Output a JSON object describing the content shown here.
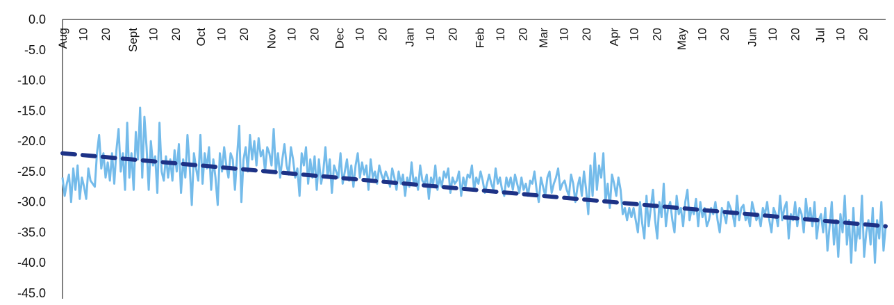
{
  "chart_data": {
    "type": "line",
    "title": "",
    "xlabel": "",
    "ylabel": "",
    "ylim": [
      -45.0,
      0.0
    ],
    "yticks": [
      "0.0",
      "-5.0",
      "-10.0",
      "-15.0",
      "-20.0",
      "-25.0",
      "-30.0",
      "-35.0",
      "-40.0",
      "-45.0"
    ],
    "xtick_labels": [
      "Aug",
      "10",
      "20",
      "Sept",
      "10",
      "20",
      "Oct",
      "10",
      "20",
      "Nov",
      "10",
      "20",
      "Dec",
      "10",
      "20",
      "Jan",
      "10",
      "20",
      "Feb",
      "10",
      "20",
      "Mar",
      "10",
      "20",
      "Apr",
      "10",
      "20",
      "May",
      "10",
      "20",
      "Jun",
      "10",
      "20",
      "Jul",
      "10",
      "20"
    ],
    "xtick_days": [
      0,
      9,
      19,
      31,
      40,
      50,
      61,
      70,
      80,
      92,
      101,
      111,
      122,
      131,
      141,
      153,
      162,
      172,
      184,
      193,
      203,
      212,
      221,
      231,
      243,
      252,
      262,
      273,
      282,
      292,
      304,
      313,
      323,
      334,
      343,
      353
    ],
    "x_range_days": [
      0,
      363
    ],
    "grid": false,
    "legend": "none",
    "series": [
      {
        "style": "solid",
        "color": "#74BBEA",
        "values": [
          -26,
          -29,
          -27,
          -25.5,
          -30,
          -24.5,
          -28,
          -24,
          -29.5,
          -26,
          -27.5,
          -29.5,
          -24.5,
          -26.5,
          -27,
          -27.5,
          -22,
          -19,
          -24.5,
          -22,
          -26,
          -23.5,
          -26.5,
          -22,
          -27,
          -21.5,
          -18,
          -25,
          -22,
          -28,
          -17,
          -26,
          -22,
          -28,
          -18.5,
          -23,
          -14.5,
          -26,
          -16,
          -21,
          -28,
          -20,
          -24,
          -22.5,
          -28.5,
          -17,
          -25,
          -26.5,
          -22.5,
          -26,
          -23,
          -26.5,
          -21.5,
          -25,
          -20.5,
          -28.5,
          -23,
          -26,
          -19,
          -24,
          -30.5,
          -22,
          -24.5,
          -26.5,
          -19,
          -27,
          -22,
          -24.5,
          -21,
          -28,
          -23,
          -26,
          -30.5,
          -22,
          -25,
          -21,
          -24,
          -26,
          -22,
          -23,
          -28,
          -22.5,
          -17.5,
          -30,
          -23,
          -21,
          -25,
          -19,
          -23,
          -20,
          -24,
          -19.5,
          -22.5,
          -21.5,
          -25,
          -21,
          -22,
          -24,
          -18,
          -25,
          -22,
          -26,
          -23,
          -20.5,
          -24,
          -25.5,
          -21,
          -23,
          -26,
          -24.5,
          -29,
          -22,
          -24,
          -21,
          -27,
          -23,
          -26,
          -22.5,
          -28,
          -23,
          -27,
          -25,
          -21,
          -26,
          -23,
          -28.5,
          -24,
          -25,
          -26,
          -22,
          -27,
          -25,
          -23,
          -26.5,
          -24,
          -27.5,
          -24,
          -22,
          -26,
          -23.5,
          -25.5,
          -24,
          -28,
          -23,
          -26,
          -25,
          -27,
          -24,
          -25.5,
          -26.5,
          -25,
          -26,
          -27.5,
          -24.5,
          -26,
          -28,
          -25,
          -27,
          -25.5,
          -29,
          -26,
          -27.5,
          -23.5,
          -27,
          -26,
          -28,
          -24,
          -26.5,
          -27,
          -25.5,
          -29.5,
          -26,
          -27,
          -24,
          -28,
          -26,
          -27.5,
          -25,
          -26,
          -24.5,
          -28.5,
          -26,
          -27,
          -26.5,
          -25,
          -29,
          -26,
          -27.5,
          -25.5,
          -26,
          -24,
          -28,
          -26,
          -27,
          -25,
          -26.5,
          -28.5,
          -27,
          -25.5,
          -27,
          -28,
          -24.5,
          -27,
          -26,
          -28,
          -29,
          -26,
          -27.5,
          -26,
          -28,
          -25.5,
          -27,
          -28.5,
          -26,
          -28,
          -27,
          -29,
          -26.5,
          -27,
          -25,
          -28,
          -30,
          -26,
          -27.5,
          -29,
          -26,
          -25,
          -28.5,
          -27,
          -26,
          -24.5,
          -28,
          -27,
          -26.5,
          -28,
          -29,
          -25.5,
          -27,
          -30,
          -27.5,
          -26,
          -29,
          -25,
          -28,
          -32,
          -24,
          -29,
          -22,
          -28,
          -24,
          -26,
          -22,
          -30,
          -27,
          -31,
          -25.5,
          -27,
          -29,
          -26,
          -28,
          -32,
          -31,
          -33,
          -31,
          -32.5,
          -31,
          -33,
          -35,
          -30,
          -33.5,
          -36,
          -29,
          -34,
          -31,
          -28,
          -33,
          -36,
          -30,
          -32.5,
          -27,
          -34,
          -31,
          -30,
          -33,
          -35,
          -29,
          -32,
          -31,
          -34,
          -30,
          -28,
          -33,
          -31,
          -32,
          -29.5,
          -34,
          -30,
          -32.5,
          -31,
          -34,
          -33,
          -31,
          -32,
          -30,
          -33,
          -35,
          -31,
          -32,
          -33.5,
          -30,
          -31,
          -32,
          -34,
          -29,
          -33,
          -31,
          -30.5,
          -33,
          -32,
          -34,
          -30,
          -31.5,
          -33,
          -32,
          -34,
          -31,
          -32,
          -30,
          -33,
          -35,
          -31,
          -32,
          -34,
          -29,
          -33,
          -31,
          -30,
          -36,
          -32,
          -33,
          -30,
          -34,
          -31,
          -32,
          -35,
          -29.5,
          -33,
          -31,
          -34,
          -30,
          -36,
          -33,
          -32,
          -35,
          -31,
          -38,
          -34,
          -30,
          -37,
          -33,
          -39,
          -32,
          -35,
          -29,
          -37,
          -33,
          -40,
          -31,
          -38,
          -34,
          -36,
          -29,
          -39,
          -35,
          -33,
          -37,
          -31,
          -40,
          -33,
          -36,
          -30,
          -38,
          -34
        ]
      },
      {
        "style": "dashed",
        "color": "#1D3286",
        "trend": [
          -22.0,
          -34.0
        ]
      }
    ]
  }
}
